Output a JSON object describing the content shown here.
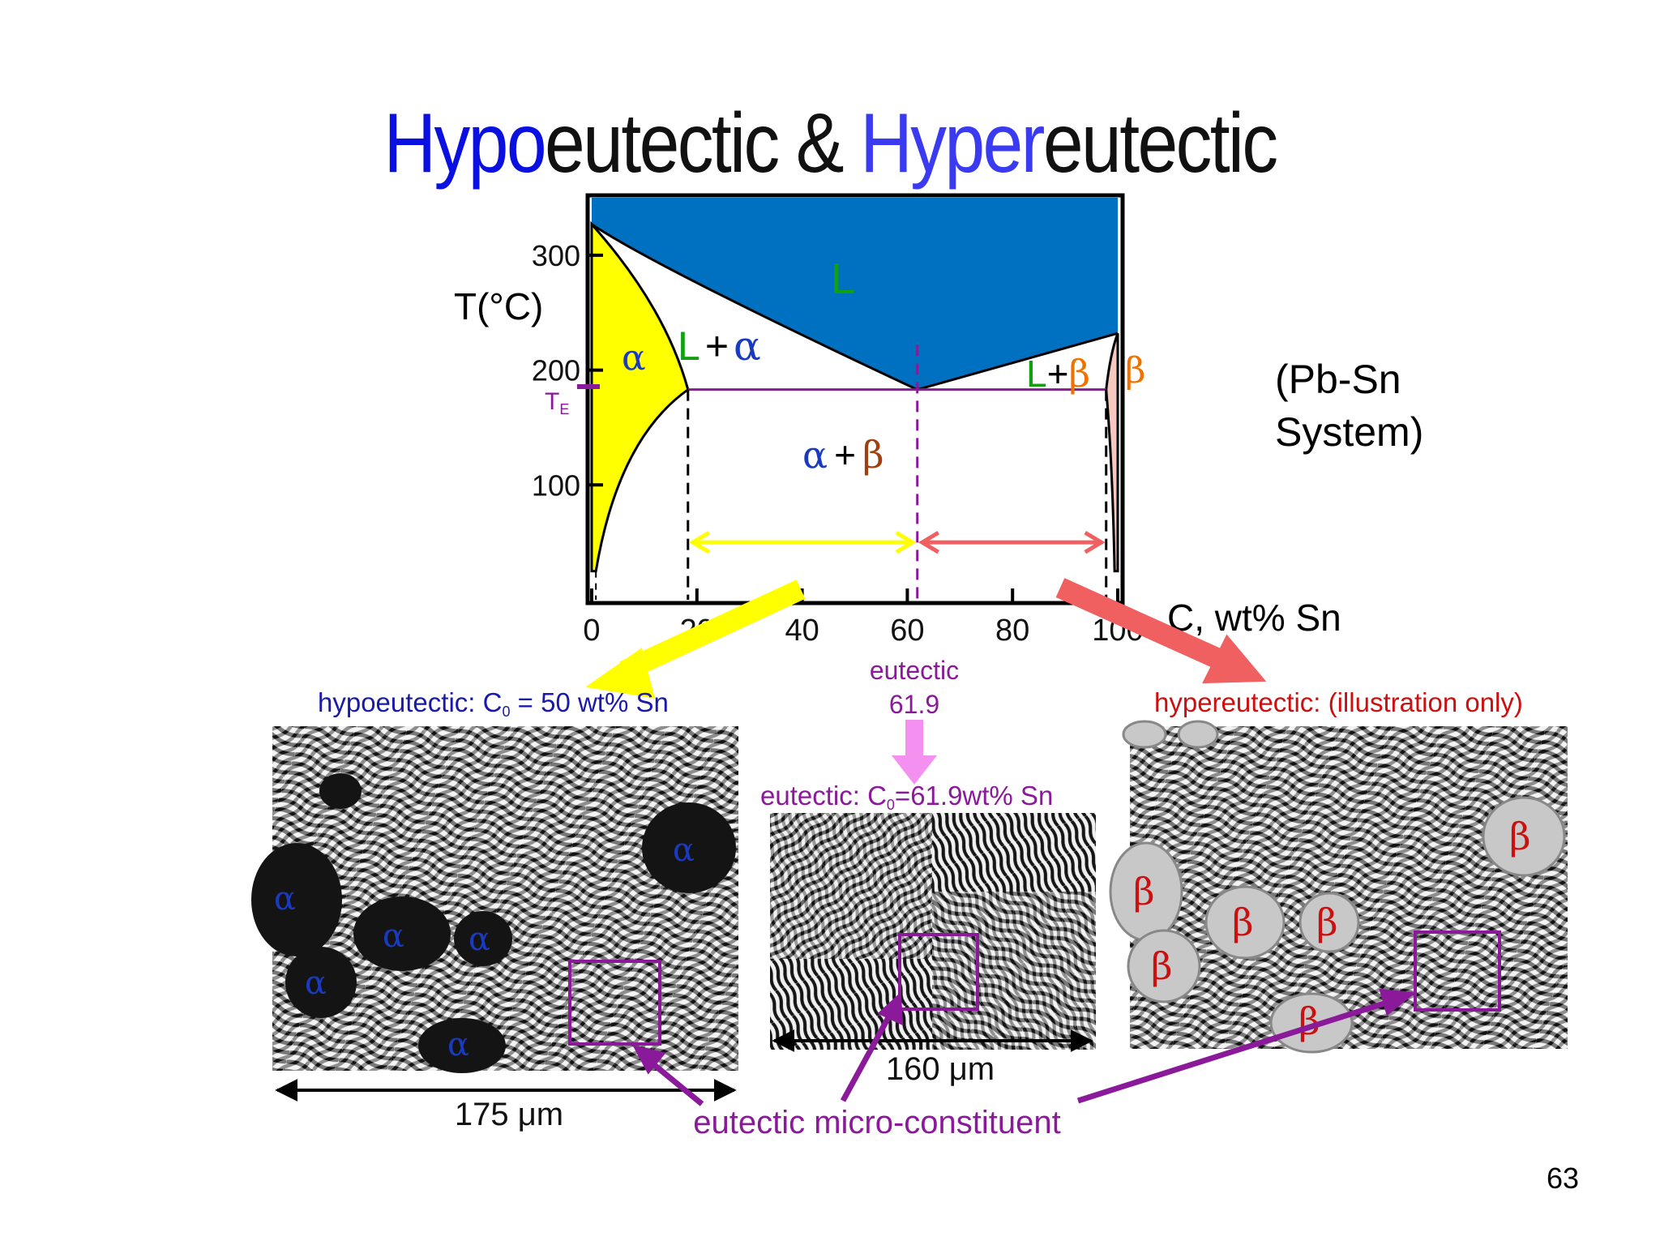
{
  "title": {
    "part1_blue": "Hypo",
    "part2": "eutectic & ",
    "part3_blue": "Hyper",
    "part4": "eutectic"
  },
  "system_label": {
    "line1": "(Pb-Sn",
    "line2": "System)"
  },
  "page_number": "63",
  "colors": {
    "liquid": "#0070c0",
    "alpha_region": "#ffff00",
    "beta_region": "#f7c8c0",
    "eutectic_line": "#8a1a9a",
    "hypo_arrow": "#ffff00",
    "hyper_arrow": "#f06060",
    "eutectic_arrow": "#f490f0",
    "hypo_text": "#1a1aaa",
    "hyper_text": "#cc1010",
    "green": "#10a010",
    "orange": "#f07000",
    "alpha_blue": "#1a3ac0",
    "beta_brown": "#a04010"
  },
  "chart_data": {
    "type": "phase-diagram",
    "xlabel": "C, wt% Sn",
    "ylabel": "T(°C)",
    "x_ticks": [
      "0",
      "20",
      "40",
      "60",
      "80",
      "100"
    ],
    "y_ticks": [
      "100",
      "200",
      "300"
    ],
    "xlim": [
      0,
      100
    ],
    "ylim": [
      0,
      350
    ],
    "eutectic_temp_label": "T",
    "eutectic_temp_subscript": "E",
    "eutectic_temperature": 183,
    "eutectic_composition": 61.9,
    "regions": {
      "L": "L",
      "L_alpha": [
        "L",
        "+",
        "α"
      ],
      "L_beta": [
        "L",
        "+",
        "β"
      ],
      "alpha": "α",
      "beta": "β",
      "alpha_beta": [
        "α",
        "+",
        "β"
      ]
    },
    "eutectic_label": {
      "line1": "eutectic",
      "line2": "61.9"
    }
  },
  "panels": {
    "hypo": {
      "caption_prefix": "hypoeutectic:  C",
      "caption_sub": "0",
      "caption_suffix": " = 50 wt% Sn",
      "scale": "175 μm",
      "phase_label": "α"
    },
    "eutectic": {
      "caption_prefix": "eutectic:  C",
      "caption_sub": "0",
      "caption_suffix": "=61.9wt% Sn",
      "scale": "160 μm"
    },
    "hyper": {
      "caption": "hypereutectic: (illustration only)",
      "phase_label": "β"
    }
  },
  "bottom_label": "eutectic micro-constituent"
}
